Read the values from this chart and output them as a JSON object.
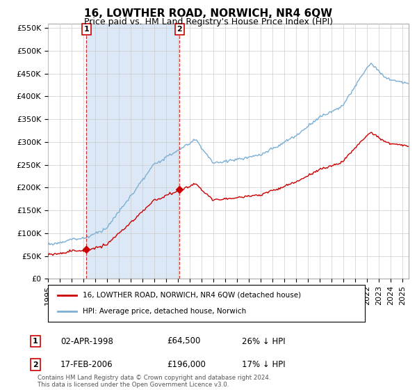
{
  "title": "16, LOWTHER ROAD, NORWICH, NR4 6QW",
  "subtitle": "Price paid vs. HM Land Registry's House Price Index (HPI)",
  "ylim": [
    0,
    560000
  ],
  "yticks": [
    0,
    50000,
    100000,
    150000,
    200000,
    250000,
    300000,
    350000,
    400000,
    450000,
    500000,
    550000
  ],
  "ytick_labels": [
    "£0",
    "£50K",
    "£100K",
    "£150K",
    "£200K",
    "£250K",
    "£300K",
    "£350K",
    "£400K",
    "£450K",
    "£500K",
    "£550K"
  ],
  "sale1_date_num": 1998.25,
  "sale1_price": 64500,
  "sale1_label": "1",
  "sale1_date_str": "02-APR-1998",
  "sale1_price_str": "£64,500",
  "sale1_pct": "26% ↓ HPI",
  "sale2_date_num": 2006.13,
  "sale2_price": 196000,
  "sale2_label": "2",
  "sale2_date_str": "17-FEB-2006",
  "sale2_price_str": "£196,000",
  "sale2_pct": "17% ↓ HPI",
  "hpi_color": "#7bafd4",
  "hpi_fill_color": "#dce8f5",
  "sale_color": "#cc0000",
  "vline1_color": "#cc0000",
  "vline2_color": "#cc0000",
  "grid_color": "#cccccc",
  "background_color": "#ffffff",
  "legend_label1": "16, LOWTHER ROAD, NORWICH, NR4 6QW (detached house)",
  "legend_label2": "HPI: Average price, detached house, Norwich",
  "footnote": "Contains HM Land Registry data © Crown copyright and database right 2024.\nThis data is licensed under the Open Government Licence v3.0.",
  "title_fontsize": 11,
  "subtitle_fontsize": 9,
  "tick_fontsize": 8
}
